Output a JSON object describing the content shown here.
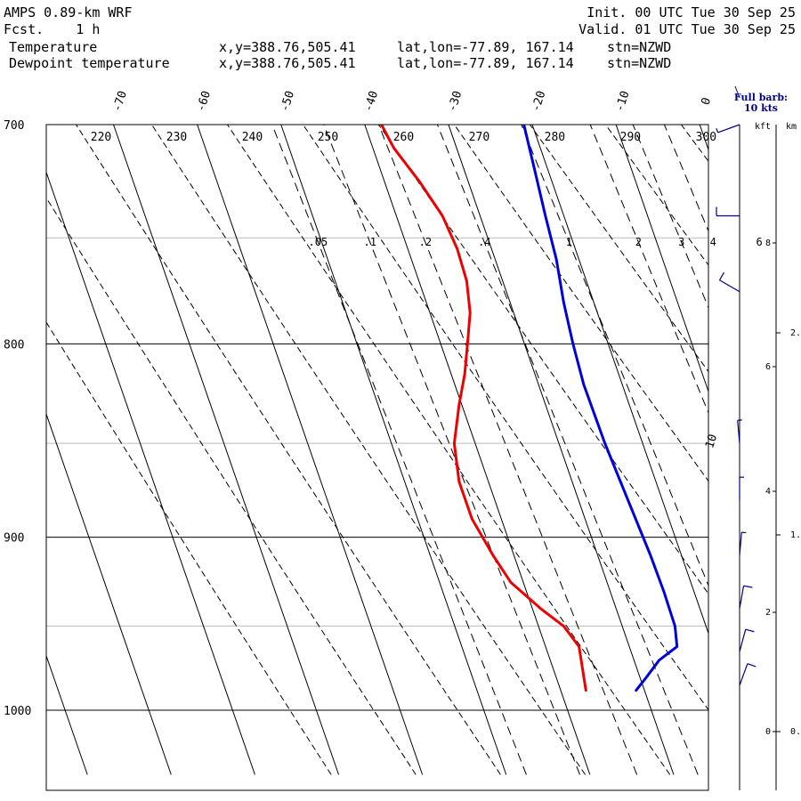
{
  "header": {
    "model": "AMPS 0.89-km WRF",
    "forecast": "Fcst.    1 h",
    "init": "Init. 00 UTC Tue 30 Sep 25",
    "valid": "Valid. 01 UTC Tue 30 Sep 25"
  },
  "legend": [
    {
      "name": "Temperature",
      "coords": "x,y=388.76,505.41",
      "latlon": "lat,lon=-77.89, 167.14",
      "station": "stn=NZWD",
      "color": "#0000dd"
    },
    {
      "name": "Dewpoint temperature",
      "coords": "x,y=388.76,505.41",
      "latlon": "lat,lon=-77.89, 167.14",
      "station": "stn=NZWD",
      "color": "#ee0000"
    }
  ],
  "barb_note": {
    "line1": "Full barb:",
    "line2": "10 kts"
  },
  "height_axis": {
    "kft_label": "kft",
    "km_label": "km"
  },
  "chart_data": {
    "type": "skew-t",
    "pressure_range_hpa": [
      1040,
      700
    ],
    "pressure_ticks": [
      700,
      800,
      900,
      1000
    ],
    "pressure_tick_labels": [
      "700",
      "800",
      "900",
      "1000"
    ],
    "temperature_ticks": [
      -70,
      -60,
      -50,
      -40,
      -30,
      -20,
      -10,
      0
    ],
    "temperature_tick_labels": [
      "-70",
      "-60",
      "-50",
      "-40",
      "-30",
      "-20",
      "-10",
      "0"
    ],
    "skew_label": "10",
    "dry_adiabats_K": [
      220,
      230,
      240,
      250,
      260,
      270,
      280,
      290,
      300
    ],
    "dry_adiabat_labels": [
      "220",
      "230",
      "240",
      "250",
      "260",
      "270",
      "280",
      "290",
      "300"
    ],
    "mixing_ratios_gkg": [
      0.05,
      0.1,
      0.2,
      0.4,
      1,
      2,
      3,
      4,
      6
    ],
    "mixing_ratio_labels": [
      ".05",
      ".1",
      ".2",
      ".4",
      "1",
      "2",
      "3",
      "4",
      "6"
    ],
    "temperature_profile": {
      "name": "Temperature",
      "units": "degC",
      "points": [
        [
          988,
          -31
        ],
        [
          980,
          -29.2
        ],
        [
          970,
          -27
        ],
        [
          962,
          -24.3
        ],
        [
          950,
          -23.7
        ],
        [
          930,
          -23.6
        ],
        [
          910,
          -23.7
        ],
        [
          880,
          -24.1
        ],
        [
          850,
          -24.5
        ],
        [
          820,
          -24.6
        ],
        [
          800,
          -24.2
        ],
        [
          780,
          -23.6
        ],
        [
          760,
          -22.7
        ],
        [
          740,
          -22.2
        ],
        [
          720,
          -21.6
        ],
        [
          700,
          -21.0
        ]
      ]
    },
    "dewpoint_profile": {
      "name": "Dewpoint temperature",
      "units": "degC",
      "points": [
        [
          988,
          -37
        ],
        [
          975,
          -36.5
        ],
        [
          962,
          -36
        ],
        [
          950,
          -37
        ],
        [
          940,
          -39
        ],
        [
          925,
          -41.5
        ],
        [
          910,
          -42.5
        ],
        [
          890,
          -43.5
        ],
        [
          870,
          -43.5
        ],
        [
          850,
          -42.5
        ],
        [
          830,
          -40.3
        ],
        [
          815,
          -38.4
        ],
        [
          800,
          -36.8
        ],
        [
          785,
          -35.2
        ],
        [
          770,
          -34.3
        ],
        [
          755,
          -34.1
        ],
        [
          740,
          -34.5
        ],
        [
          725,
          -35.8
        ],
        [
          710,
          -37.5
        ],
        [
          700,
          -38.0
        ]
      ]
    },
    "wind_profile": {
      "units": "kt",
      "points": [
        {
          "p": 700,
          "dir": 250,
          "spd": 5
        },
        {
          "p": 740,
          "dir": 270,
          "spd": 10
        },
        {
          "p": 775,
          "dir": 300,
          "spd": 10
        },
        {
          "p": 850,
          "dir": 355,
          "spd": 5
        },
        {
          "p": 880,
          "dir": 0,
          "spd": 5
        },
        {
          "p": 910,
          "dir": 5,
          "spd": 8
        },
        {
          "p": 940,
          "dir": 10,
          "spd": 10
        },
        {
          "p": 965,
          "dir": 15,
          "spd": 10
        },
        {
          "p": 985,
          "dir": 20,
          "spd": 10
        }
      ]
    },
    "height_kft": {
      "ticks": [
        0,
        2,
        4,
        6,
        8
      ],
      "labels": [
        "0",
        "2",
        "4",
        "6",
        "8"
      ],
      "km_ticks": [
        0,
        1,
        2
      ],
      "km_labels": [
        "0.",
        "1.",
        "2."
      ]
    }
  }
}
